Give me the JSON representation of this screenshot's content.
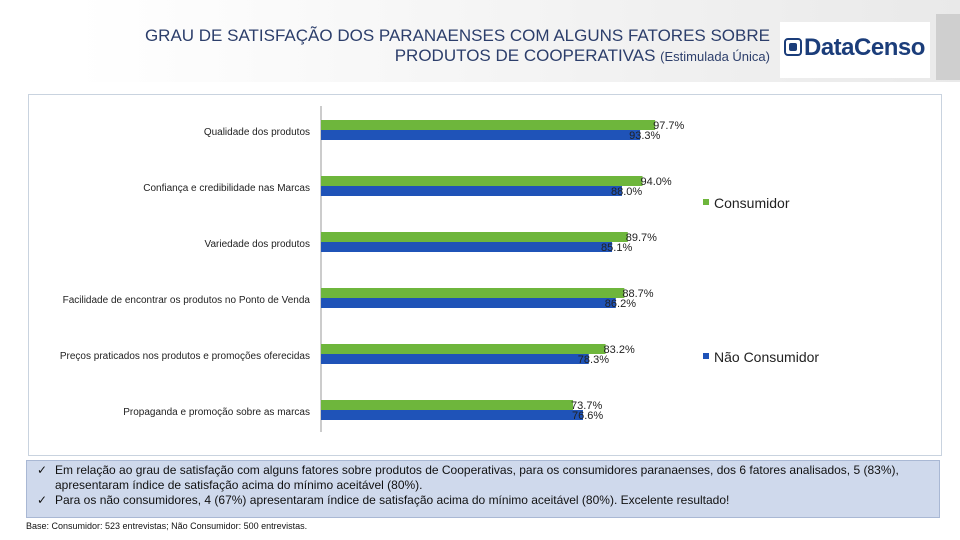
{
  "header": {
    "title_line1": "GRAU DE SATISFAÇÃO DOS PARANAENSES COM ALGUNS FATORES SOBRE",
    "title_line2": "PRODUTOS DE COOPERATIVAS",
    "title_qualifier": "(Estimulada Única)",
    "logo_text": "DataCenso"
  },
  "colors": {
    "consumidor": "#6eb63c",
    "nao_consumidor": "#1f53b8",
    "title": "#2c3e6b"
  },
  "chart_data": {
    "type": "bar",
    "orientation": "horizontal",
    "categories": [
      "Qualidade dos produtos",
      "Confiança e credibilidade nas Marcas",
      "Variedade dos produtos",
      "Facilidade de encontrar os produtos no Ponto de Venda",
      "Preços praticados nos produtos e promoções oferecidas",
      "Propaganda e promoção sobre as marcas"
    ],
    "series": [
      {
        "name": "Consumidor",
        "values": [
          97.7,
          94.0,
          89.7,
          88.7,
          83.2,
          73.7
        ],
        "labels": [
          "97.7%",
          "94.0%",
          "89.7%",
          "88.7%",
          "83.2%",
          "73.7%"
        ]
      },
      {
        "name": "Não Consumidor",
        "values": [
          93.3,
          88.0,
          85.1,
          86.2,
          78.3,
          76.6
        ],
        "labels": [
          "93.3%",
          "88.0%",
          "85.1%",
          "86.2%",
          "78.3%",
          "76.6%"
        ]
      }
    ],
    "xlim": [
      0,
      100
    ],
    "legend": "right"
  },
  "notes": [
    "Em relação ao grau de satisfação com alguns fatores sobre produtos de Cooperativas, para os consumidores paranaenses, dos 6 fatores analisados, 5 (83%), apresentaram índice de satisfação acima do mínimo aceitável (80%).",
    "Para os não consumidores, 4 (67%) apresentaram índice de satisfação acima do mínimo aceitável (80%). Excelente resultado!"
  ],
  "check_mark": "✓",
  "base_text": "Base: Consumidor: 523 entrevistas; Não Consumidor: 500 entrevistas."
}
